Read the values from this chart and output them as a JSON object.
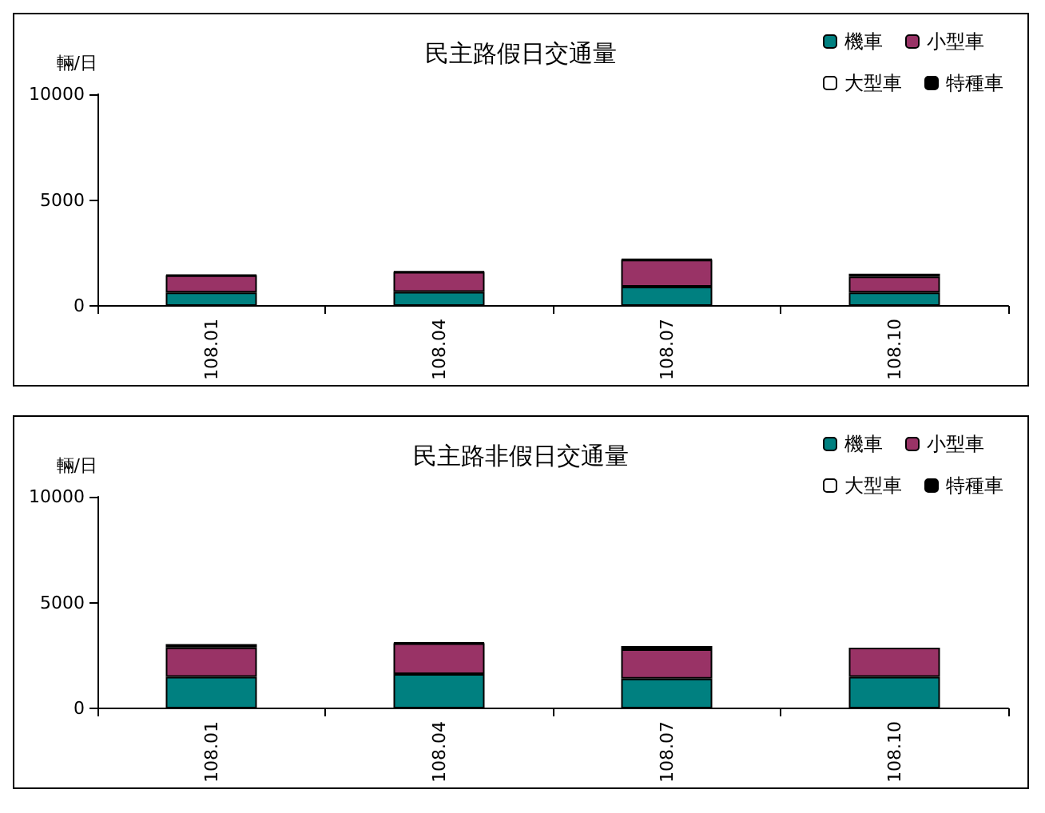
{
  "chart_data": [
    {
      "type": "bar",
      "title": "民主路假日交通量",
      "ylabel": "輛/日",
      "categories": [
        "108.01",
        "108.04",
        "108.07",
        "108.10"
      ],
      "stacked": true,
      "ylim": [
        0,
        10000
      ],
      "yticks": [
        0,
        5000,
        10000
      ],
      "grid": false,
      "legend": "top right",
      "series": [
        {
          "name": "機車",
          "color": "#008080",
          "values": [
            630,
            660,
            910,
            630
          ]
        },
        {
          "name": "小型車",
          "color": "#993366",
          "values": [
            810,
            940,
            1270,
            760
          ]
        },
        {
          "name": "大型車",
          "color": "#ffffff",
          "values": [
            0,
            0,
            0,
            0
          ]
        },
        {
          "name": "特種車",
          "color": "#000000",
          "values": [
            30,
            30,
            30,
            130
          ]
        }
      ]
    },
    {
      "type": "bar",
      "title": "民主路非假日交通量",
      "ylabel": "輛/日",
      "categories": [
        "108.01",
        "108.04",
        "108.07",
        "108.10"
      ],
      "stacked": true,
      "ylim": [
        0,
        10000
      ],
      "yticks": [
        0,
        5000,
        10000
      ],
      "grid": false,
      "legend": "top right",
      "series": [
        {
          "name": "機車",
          "color": "#008080",
          "values": [
            1490,
            1620,
            1410,
            1490
          ]
        },
        {
          "name": "小型車",
          "color": "#993366",
          "values": [
            1390,
            1460,
            1380,
            1380
          ]
        },
        {
          "name": "大型車",
          "color": "#ffffff",
          "values": [
            0,
            0,
            0,
            0
          ]
        },
        {
          "name": "特種車",
          "color": "#000000",
          "values": [
            160,
            30,
            150,
            null
          ]
        }
      ]
    }
  ]
}
